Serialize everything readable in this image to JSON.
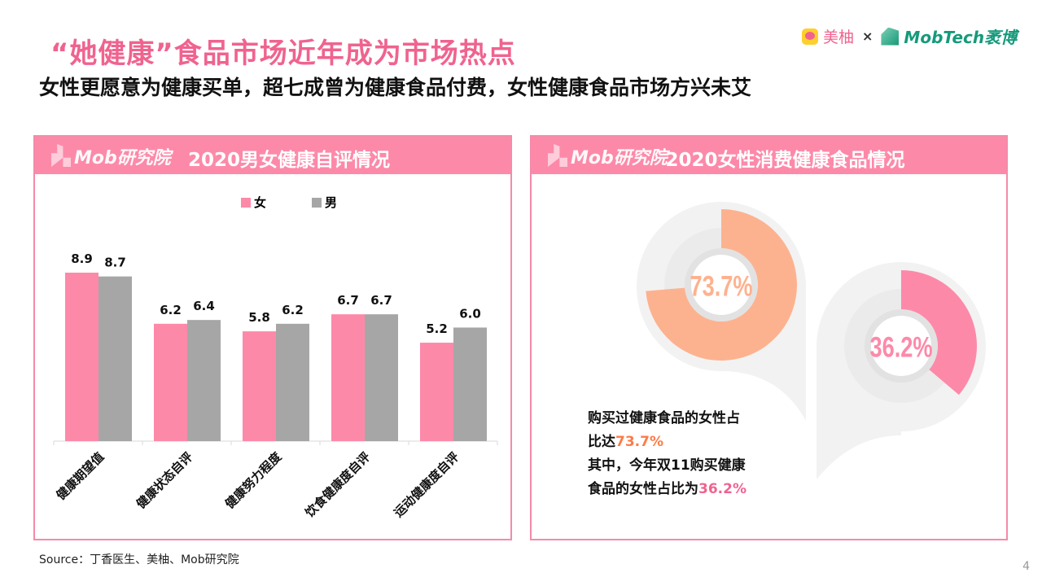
{
  "header": {
    "title": "“她健康”食品市场近年成为市场热点",
    "subtitle": "女性更愿意为健康买单，超七成曾为健康食品付费，女性健康食品市场方兴未艾"
  },
  "logos": {
    "meiyou": "美柚",
    "times": "×",
    "mobtech": "MobTech袤博",
    "mob_research": "Mob研究院"
  },
  "left_panel": {
    "title": "2020男女健康自评情况"
  },
  "right_panel": {
    "title": "2020女性消费健康食品情况"
  },
  "colors": {
    "female": "#fd89a9",
    "male": "#a6a6a6",
    "orange": "#fdb28f",
    "pink": "#fd89a9",
    "header": "#fd89a9"
  },
  "chart_data": [
    {
      "type": "bar",
      "categories": [
        "健康期望值",
        "健康状态自评",
        "健康努力程度",
        "饮食健康度自评",
        "运动健康度自评"
      ],
      "series": [
        {
          "name": "女",
          "values": [
            8.9,
            6.2,
            5.8,
            6.7,
            5.2
          ]
        },
        {
          "name": "男",
          "values": [
            8.7,
            6.4,
            6.2,
            6.7,
            6.0
          ]
        }
      ],
      "ylim": [
        0,
        10
      ],
      "legend": "top",
      "grid": false
    },
    {
      "type": "pie",
      "subtype": "donut",
      "values": [
        73.7
      ],
      "label": "73.7%"
    },
    {
      "type": "pie",
      "subtype": "donut",
      "values": [
        36.2
      ],
      "label": "36.2%"
    }
  ],
  "desc": {
    "line1": "购买过健康食品的女性占",
    "line2_pre": "比达",
    "line2_val": "73.7%",
    "line3": "其中，今年双11购买健康",
    "line4_pre": "食品的女性占比为",
    "line4_val": "36.2%"
  },
  "footer": {
    "source": "Source：丁香医生、美柚、Mob研究院",
    "page": "4"
  }
}
